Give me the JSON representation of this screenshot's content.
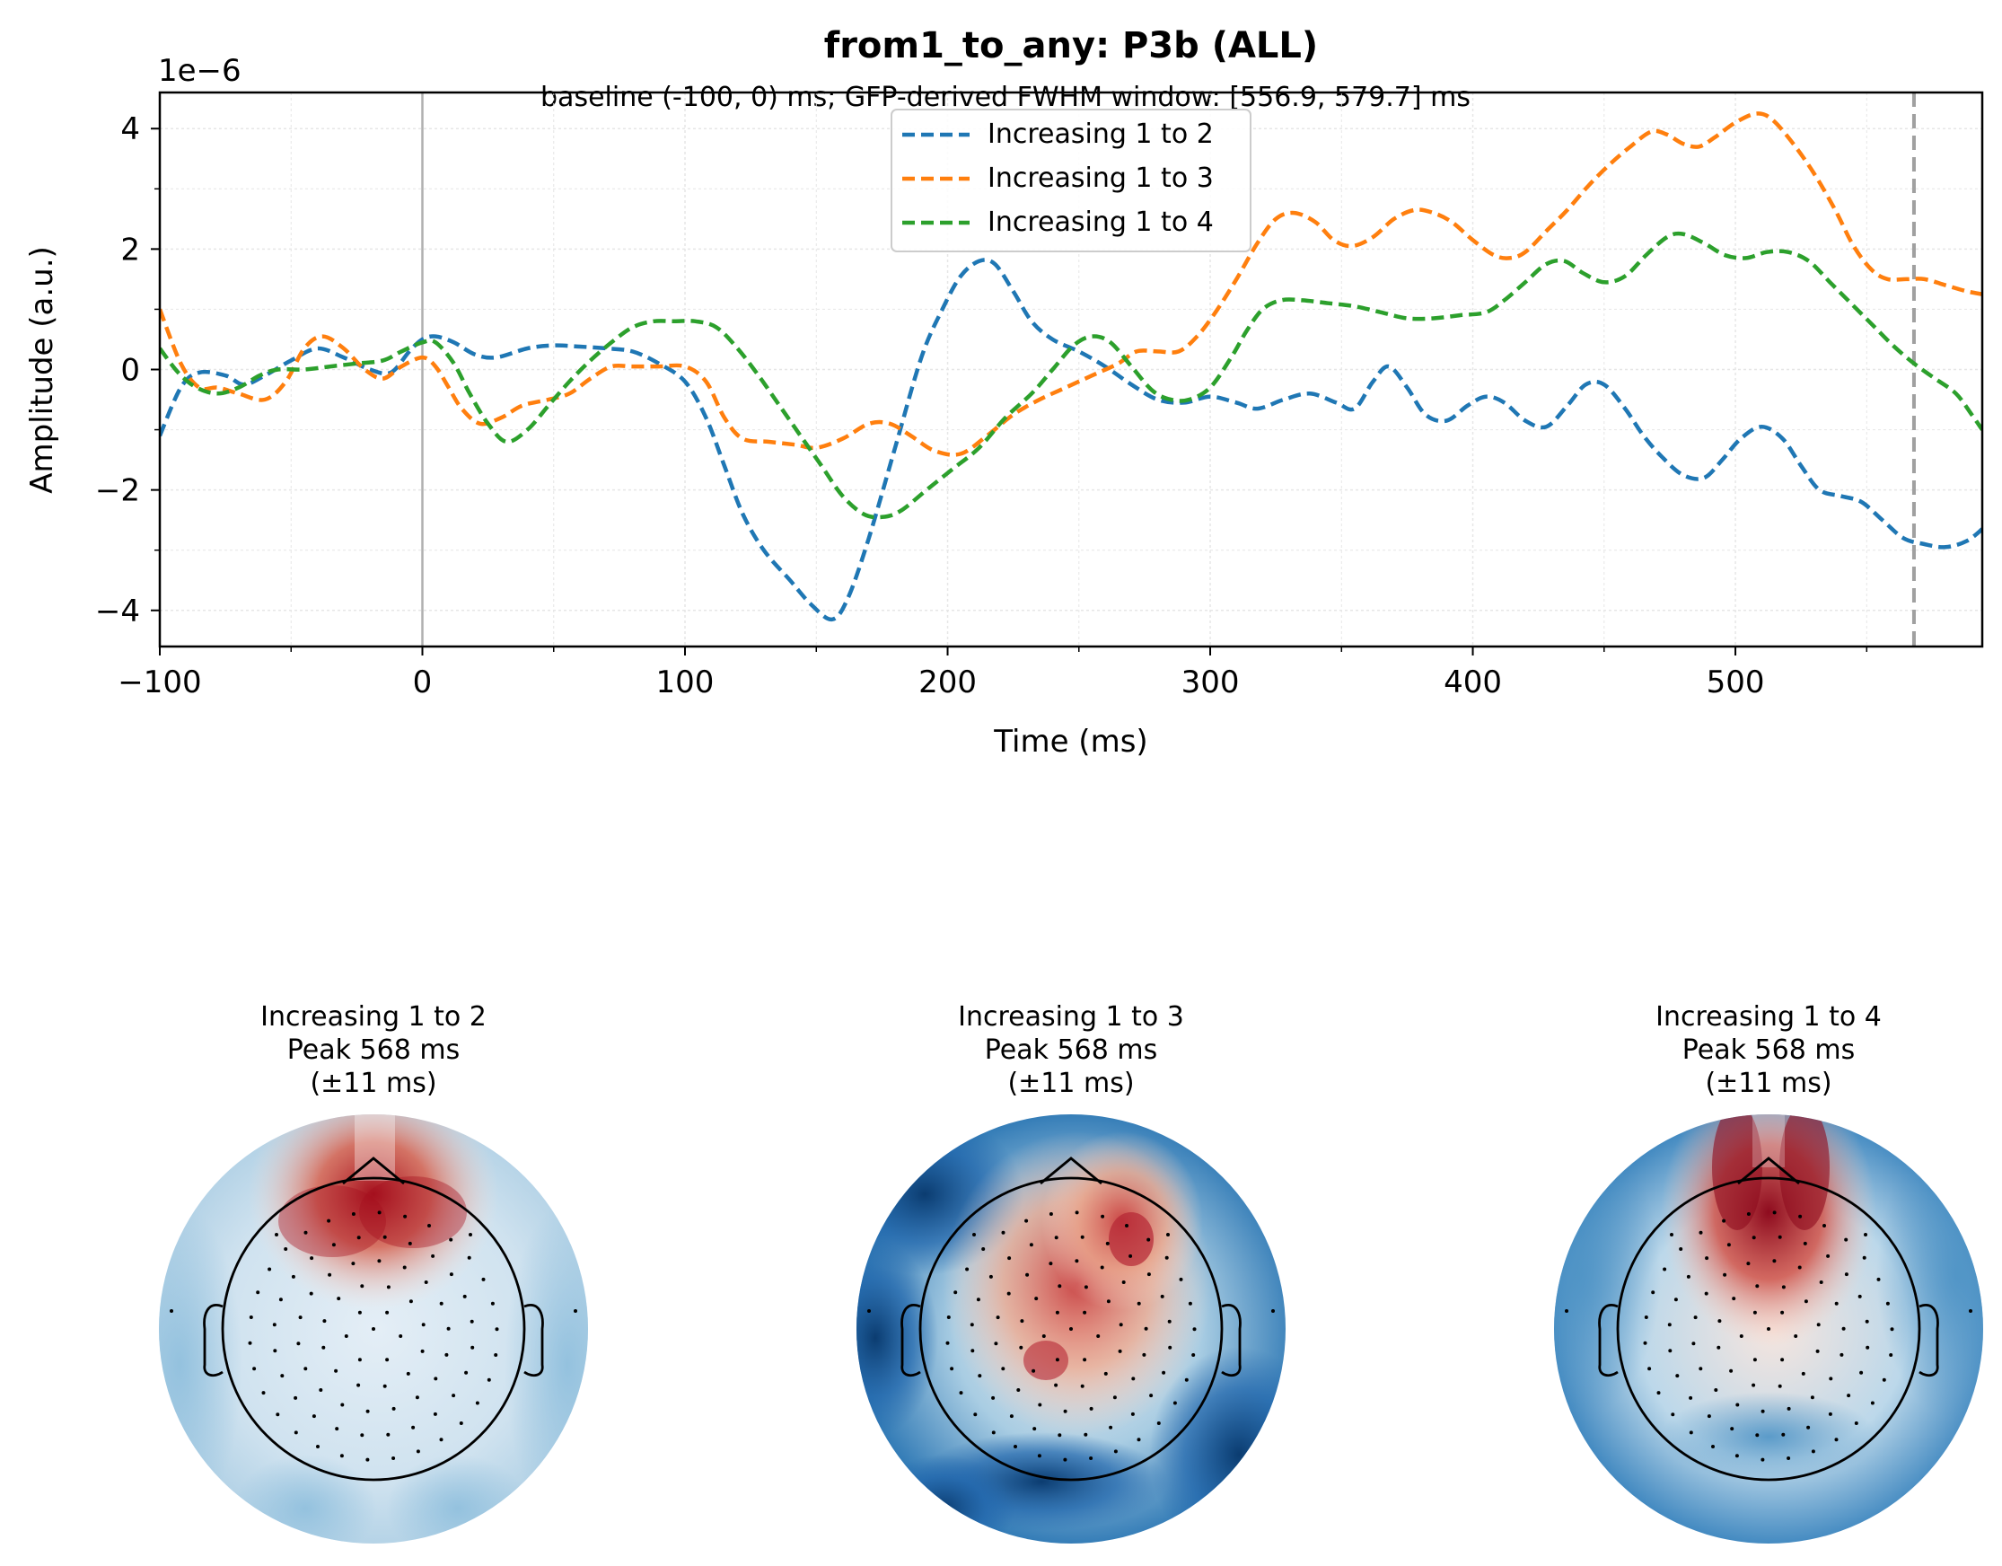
{
  "figure": {
    "title": "from1_to_any: P3b (ALL)",
    "subtitle": "baseline (-100, 0) ms; GFP-derived FWHM window: [556.9, 579.7] ms"
  },
  "chart_data": [
    {
      "type": "line",
      "xlabel": "Time (ms)",
      "ylabel": "Amplitude (a.u.)",
      "y_offset_label": "1e−6",
      "xlim": [
        -100,
        594
      ],
      "ylim": [
        -4.6,
        4.6
      ],
      "xticks": [
        -100,
        0,
        100,
        200,
        300,
        400,
        500
      ],
      "xtick_labels": [
        "−100",
        "0",
        "100",
        "200",
        "300",
        "400",
        "500"
      ],
      "yticks": [
        -4,
        -2,
        0,
        2,
        4
      ],
      "ytick_labels": [
        "−4",
        "−2",
        "0",
        "2",
        "4"
      ],
      "grid": true,
      "legend_position": "upper-center",
      "markers": [
        {
          "x": 0,
          "style": "solid",
          "color": "#b0b0b0"
        },
        {
          "x": 568,
          "style": "dashed",
          "color": "#a0a0a0"
        }
      ],
      "series": [
        {
          "name": "Increasing 1 to 2",
          "color": "#1f77b4",
          "points": [
            [
              -100,
              -1.1
            ],
            [
              -92,
              -0.3
            ],
            [
              -85,
              -0.05
            ],
            [
              -75,
              -0.1
            ],
            [
              -68,
              -0.25
            ],
            [
              -60,
              -0.1
            ],
            [
              -50,
              0.15
            ],
            [
              -40,
              0.35
            ],
            [
              -30,
              0.2
            ],
            [
              -20,
              0.0
            ],
            [
              -12,
              -0.05
            ],
            [
              -5,
              0.3
            ],
            [
              0,
              0.5
            ],
            [
              5,
              0.55
            ],
            [
              12,
              0.45
            ],
            [
              20,
              0.25
            ],
            [
              28,
              0.2
            ],
            [
              40,
              0.35
            ],
            [
              50,
              0.4
            ],
            [
              60,
              0.38
            ],
            [
              70,
              0.35
            ],
            [
              80,
              0.3
            ],
            [
              90,
              0.1
            ],
            [
              100,
              -0.2
            ],
            [
              108,
              -0.8
            ],
            [
              115,
              -1.6
            ],
            [
              122,
              -2.4
            ],
            [
              130,
              -3.0
            ],
            [
              140,
              -3.5
            ],
            [
              148,
              -3.9
            ],
            [
              156,
              -4.15
            ],
            [
              162,
              -3.8
            ],
            [
              170,
              -2.8
            ],
            [
              180,
              -1.3
            ],
            [
              190,
              0.2
            ],
            [
              198,
              1.0
            ],
            [
              205,
              1.55
            ],
            [
              212,
              1.8
            ],
            [
              218,
              1.75
            ],
            [
              225,
              1.3
            ],
            [
              232,
              0.8
            ],
            [
              240,
              0.5
            ],
            [
              250,
              0.3
            ],
            [
              260,
              0.05
            ],
            [
              270,
              -0.25
            ],
            [
              280,
              -0.5
            ],
            [
              290,
              -0.55
            ],
            [
              300,
              -0.45
            ],
            [
              310,
              -0.55
            ],
            [
              318,
              -0.65
            ],
            [
              328,
              -0.5
            ],
            [
              338,
              -0.4
            ],
            [
              348,
              -0.55
            ],
            [
              355,
              -0.65
            ],
            [
              362,
              -0.2
            ],
            [
              368,
              0.05
            ],
            [
              375,
              -0.3
            ],
            [
              382,
              -0.75
            ],
            [
              390,
              -0.85
            ],
            [
              398,
              -0.6
            ],
            [
              405,
              -0.45
            ],
            [
              412,
              -0.55
            ],
            [
              420,
              -0.85
            ],
            [
              428,
              -0.95
            ],
            [
              436,
              -0.6
            ],
            [
              443,
              -0.25
            ],
            [
              450,
              -0.25
            ],
            [
              458,
              -0.65
            ],
            [
              465,
              -1.1
            ],
            [
              472,
              -1.45
            ],
            [
              480,
              -1.75
            ],
            [
              488,
              -1.8
            ],
            [
              495,
              -1.5
            ],
            [
              502,
              -1.15
            ],
            [
              510,
              -0.95
            ],
            [
              518,
              -1.15
            ],
            [
              525,
              -1.6
            ],
            [
              532,
              -2.0
            ],
            [
              540,
              -2.1
            ],
            [
              548,
              -2.2
            ],
            [
              556,
              -2.5
            ],
            [
              564,
              -2.8
            ],
            [
              572,
              -2.9
            ],
            [
              580,
              -2.95
            ],
            [
              588,
              -2.85
            ],
            [
              594,
              -2.65
            ]
          ]
        },
        {
          "name": "Increasing 1 to 3",
          "color": "#ff7f0e",
          "points": [
            [
              -100,
              1.0
            ],
            [
              -92,
              0.1
            ],
            [
              -85,
              -0.3
            ],
            [
              -78,
              -0.3
            ],
            [
              -70,
              -0.4
            ],
            [
              -60,
              -0.5
            ],
            [
              -52,
              -0.2
            ],
            [
              -45,
              0.35
            ],
            [
              -38,
              0.55
            ],
            [
              -30,
              0.35
            ],
            [
              -22,
              0.0
            ],
            [
              -15,
              -0.15
            ],
            [
              -8,
              0.05
            ],
            [
              0,
              0.2
            ],
            [
              5,
              0.05
            ],
            [
              10,
              -0.3
            ],
            [
              15,
              -0.65
            ],
            [
              22,
              -0.9
            ],
            [
              30,
              -0.8
            ],
            [
              38,
              -0.6
            ],
            [
              48,
              -0.5
            ],
            [
              56,
              -0.4
            ],
            [
              64,
              -0.15
            ],
            [
              72,
              0.05
            ],
            [
              80,
              0.05
            ],
            [
              90,
              0.05
            ],
            [
              100,
              0.05
            ],
            [
              108,
              -0.2
            ],
            [
              115,
              -0.8
            ],
            [
              122,
              -1.15
            ],
            [
              132,
              -1.2
            ],
            [
              142,
              -1.25
            ],
            [
              150,
              -1.3
            ],
            [
              160,
              -1.15
            ],
            [
              170,
              -0.9
            ],
            [
              178,
              -0.9
            ],
            [
              186,
              -1.1
            ],
            [
              195,
              -1.35
            ],
            [
              205,
              -1.4
            ],
            [
              215,
              -1.1
            ],
            [
              225,
              -0.75
            ],
            [
              235,
              -0.5
            ],
            [
              245,
              -0.3
            ],
            [
              255,
              -0.1
            ],
            [
              265,
              0.1
            ],
            [
              272,
              0.3
            ],
            [
              280,
              0.3
            ],
            [
              288,
              0.3
            ],
            [
              295,
              0.55
            ],
            [
              302,
              0.95
            ],
            [
              310,
              1.5
            ],
            [
              318,
              2.1
            ],
            [
              325,
              2.5
            ],
            [
              332,
              2.6
            ],
            [
              340,
              2.45
            ],
            [
              347,
              2.15
            ],
            [
              354,
              2.05
            ],
            [
              362,
              2.2
            ],
            [
              370,
              2.5
            ],
            [
              378,
              2.65
            ],
            [
              385,
              2.6
            ],
            [
              392,
              2.45
            ],
            [
              400,
              2.15
            ],
            [
              408,
              1.9
            ],
            [
              414,
              1.85
            ],
            [
              420,
              1.95
            ],
            [
              428,
              2.3
            ],
            [
              436,
              2.65
            ],
            [
              444,
              3.05
            ],
            [
              452,
              3.4
            ],
            [
              460,
              3.7
            ],
            [
              468,
              3.95
            ],
            [
              474,
              3.9
            ],
            [
              480,
              3.75
            ],
            [
              486,
              3.7
            ],
            [
              492,
              3.85
            ],
            [
              500,
              4.1
            ],
            [
              508,
              4.25
            ],
            [
              514,
              4.15
            ],
            [
              522,
              3.75
            ],
            [
              530,
              3.25
            ],
            [
              538,
              2.65
            ],
            [
              545,
              2.05
            ],
            [
              552,
              1.65
            ],
            [
              558,
              1.5
            ],
            [
              565,
              1.5
            ],
            [
              572,
              1.5
            ],
            [
              580,
              1.4
            ],
            [
              588,
              1.3
            ],
            [
              594,
              1.25
            ]
          ]
        },
        {
          "name": "Increasing 1 to 4",
          "color": "#2ca02c",
          "points": [
            [
              -100,
              0.35
            ],
            [
              -93,
              -0.05
            ],
            [
              -86,
              -0.3
            ],
            [
              -78,
              -0.4
            ],
            [
              -70,
              -0.3
            ],
            [
              -62,
              -0.1
            ],
            [
              -55,
              0.0
            ],
            [
              -45,
              0.0
            ],
            [
              -35,
              0.05
            ],
            [
              -25,
              0.1
            ],
            [
              -15,
              0.15
            ],
            [
              -8,
              0.3
            ],
            [
              0,
              0.45
            ],
            [
              5,
              0.45
            ],
            [
              12,
              0.1
            ],
            [
              18,
              -0.4
            ],
            [
              25,
              -0.9
            ],
            [
              32,
              -1.2
            ],
            [
              40,
              -1.0
            ],
            [
              48,
              -0.6
            ],
            [
              56,
              -0.2
            ],
            [
              64,
              0.15
            ],
            [
              72,
              0.45
            ],
            [
              80,
              0.7
            ],
            [
              88,
              0.8
            ],
            [
              96,
              0.8
            ],
            [
              104,
              0.8
            ],
            [
              112,
              0.7
            ],
            [
              120,
              0.35
            ],
            [
              128,
              -0.1
            ],
            [
              136,
              -0.6
            ],
            [
              144,
              -1.1
            ],
            [
              152,
              -1.6
            ],
            [
              160,
              -2.1
            ],
            [
              168,
              -2.4
            ],
            [
              175,
              -2.45
            ],
            [
              182,
              -2.35
            ],
            [
              192,
              -2.0
            ],
            [
              202,
              -1.65
            ],
            [
              212,
              -1.3
            ],
            [
              222,
              -0.8
            ],
            [
              232,
              -0.4
            ],
            [
              240,
              0.0
            ],
            [
              248,
              0.4
            ],
            [
              255,
              0.55
            ],
            [
              262,
              0.45
            ],
            [
              270,
              0.05
            ],
            [
              278,
              -0.35
            ],
            [
              285,
              -0.5
            ],
            [
              292,
              -0.5
            ],
            [
              300,
              -0.3
            ],
            [
              308,
              0.2
            ],
            [
              314,
              0.65
            ],
            [
              320,
              1.0
            ],
            [
              327,
              1.15
            ],
            [
              335,
              1.15
            ],
            [
              345,
              1.1
            ],
            [
              355,
              1.05
            ],
            [
              365,
              0.95
            ],
            [
              375,
              0.85
            ],
            [
              385,
              0.85
            ],
            [
              395,
              0.9
            ],
            [
              405,
              0.95
            ],
            [
              412,
              1.15
            ],
            [
              420,
              1.45
            ],
            [
              428,
              1.75
            ],
            [
              435,
              1.8
            ],
            [
              442,
              1.6
            ],
            [
              450,
              1.45
            ],
            [
              458,
              1.55
            ],
            [
              466,
              1.9
            ],
            [
              474,
              2.2
            ],
            [
              480,
              2.25
            ],
            [
              488,
              2.1
            ],
            [
              496,
              1.9
            ],
            [
              504,
              1.85
            ],
            [
              512,
              1.95
            ],
            [
              520,
              1.95
            ],
            [
              528,
              1.8
            ],
            [
              536,
              1.45
            ],
            [
              544,
              1.1
            ],
            [
              552,
              0.75
            ],
            [
              560,
              0.4
            ],
            [
              568,
              0.1
            ],
            [
              576,
              -0.15
            ],
            [
              584,
              -0.4
            ],
            [
              590,
              -0.75
            ],
            [
              594,
              -1.0
            ]
          ]
        }
      ]
    },
    {
      "type": "heatmap",
      "topomaps": [
        {
          "title": "Increasing 1 to 2",
          "peak": "Peak 568 ms",
          "window": "(±11 ms)"
        },
        {
          "title": "Increasing 1 to 3",
          "peak": "Peak 568 ms",
          "window": "(±11 ms)"
        },
        {
          "title": "Increasing 1 to 4",
          "peak": "Peak 568 ms",
          "window": "(±11 ms)"
        }
      ]
    }
  ]
}
